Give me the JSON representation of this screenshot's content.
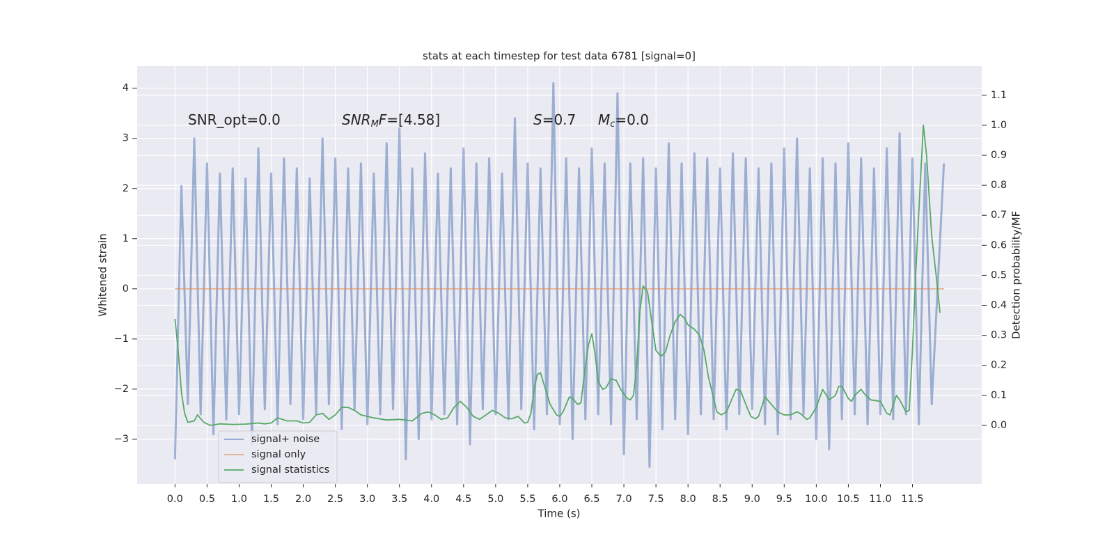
{
  "chart_data": {
    "type": "line",
    "title": "stats at each timestep for test data 6781 [signal=0]",
    "xlabel": "Time (s)",
    "ylabel": "Whitened strain",
    "y2label": "Detection probability/MF",
    "annotations": [
      [
        "SNR_opt=0.0"
      ],
      [
        "SNR",
        "M",
        "F",
        "=[4.58]"
      ],
      [
        "S",
        "=0.7"
      ],
      [
        "M",
        "c",
        "=0.0"
      ]
    ],
    "xlim": [
      -0.59,
      12.58
    ],
    "ylim": [
      -3.89,
      4.44
    ],
    "y2lim": [
      -0.195,
      1.197
    ],
    "xticks": [
      {
        "value": 0,
        "label": "0.0"
      },
      0.5,
      {
        "value": 1,
        "label": "1.0"
      },
      1.5,
      {
        "value": 2,
        "label": "2.0"
      },
      2.5,
      {
        "value": 3,
        "label": "3.0"
      },
      3.5,
      {
        "value": 4,
        "label": "4.0"
      },
      4.5,
      {
        "value": 5,
        "label": "5.0"
      },
      5.5,
      {
        "value": 6,
        "label": "6.0"
      },
      6.5,
      {
        "value": 7,
        "label": "7.0"
      },
      7.5,
      {
        "value": 8,
        "label": "8.0"
      },
      8.5,
      {
        "value": 9,
        "label": "9.0"
      },
      9.5,
      {
        "value": 10,
        "label": "10.0"
      },
      10.5,
      {
        "value": 11,
        "label": "11.0"
      },
      11.5
    ],
    "yticks": [
      {
        "value": -3,
        "label": "−3"
      },
      {
        "value": -2,
        "label": "−2"
      },
      {
        "value": -1,
        "label": "−1"
      },
      0,
      1,
      2,
      3,
      4
    ],
    "y2ticks": [
      {
        "value": 0,
        "label": "0.0"
      },
      0.1,
      0.2,
      0.3,
      0.4,
      0.5,
      0.6,
      0.7,
      0.8,
      0.9,
      {
        "value": 1,
        "label": "1.0"
      },
      1.1
    ],
    "grid": true,
    "legend_loc": "lower left",
    "series": [
      {
        "name": "signal+ noise",
        "color": "#4c72b0",
        "x": [
          0,
          0.1,
          0.2,
          0.3,
          0.4,
          0.5,
          0.6,
          0.7,
          0.8,
          0.9,
          1,
          1.1,
          1.2,
          1.3,
          1.4,
          1.5,
          1.6,
          1.7,
          1.8,
          1.9,
          2,
          2.1,
          2.2,
          2.3,
          2.4,
          2.5,
          2.6,
          2.7,
          2.8,
          2.9,
          3,
          3.1,
          3.2,
          3.3,
          3.4,
          3.5,
          3.6,
          3.7,
          3.8,
          3.9,
          4,
          4.1,
          4.2,
          4.3,
          4.4,
          4.5,
          4.6,
          4.7,
          4.8,
          4.9,
          5,
          5.1,
          5.2,
          5.3,
          5.4,
          5.5,
          5.6,
          5.7,
          5.8,
          5.9,
          6,
          6.1,
          6.2,
          6.3,
          6.4,
          6.5,
          6.6,
          6.7,
          6.8,
          6.9,
          7,
          7.1,
          7.2,
          7.3,
          7.4,
          7.5,
          7.6,
          7.7,
          7.8,
          7.9,
          8,
          8.1,
          8.2,
          8.3,
          8.4,
          8.5,
          8.6,
          8.7,
          8.8,
          8.9,
          9,
          9.1,
          9.2,
          9.3,
          9.4,
          9.5,
          9.6,
          9.7,
          9.8,
          9.9,
          10,
          10.1,
          10.2,
          10.3,
          10.4,
          10.5,
          10.6,
          10.7,
          10.8,
          10.9,
          11,
          11.1,
          11.2,
          11.3,
          11.4,
          11.5,
          11.6,
          11.7,
          11.8,
          11.99
        ],
        "values": [
          -3.4,
          2.05,
          -2.3,
          3.0,
          -2.5,
          2.5,
          -2.9,
          2.3,
          -2.6,
          2.4,
          -2.5,
          2.2,
          -3.1,
          2.8,
          -2.4,
          2.3,
          -2.7,
          2.6,
          -2.3,
          2.4,
          -2.6,
          2.2,
          -2.5,
          3.0,
          -2.3,
          2.6,
          -2.8,
          2.4,
          -2.4,
          2.5,
          -2.7,
          2.3,
          -2.5,
          2.9,
          -2.4,
          3.2,
          -3.4,
          2.4,
          -3.0,
          2.7,
          -2.6,
          2.3,
          -2.5,
          2.4,
          -2.7,
          2.8,
          -3.1,
          2.5,
          -2.4,
          2.6,
          -2.5,
          2.3,
          -2.6,
          3.4,
          -2.4,
          2.5,
          -2.8,
          2.4,
          -2.5,
          4.1,
          -2.7,
          2.6,
          -3.0,
          2.4,
          -2.6,
          2.8,
          -2.5,
          2.5,
          -2.7,
          3.9,
          -3.3,
          2.5,
          -2.6,
          2.6,
          -3.55,
          2.4,
          -2.8,
          2.9,
          -2.6,
          2.5,
          -2.9,
          2.7,
          -2.5,
          2.6,
          -2.6,
          2.4,
          -2.8,
          2.7,
          -2.5,
          2.6,
          -2.4,
          2.4,
          -2.7,
          2.5,
          -2.9,
          2.8,
          -2.6,
          3.0,
          -2.5,
          2.4,
          -3.0,
          2.6,
          -3.2,
          2.5,
          -2.6,
          2.9,
          -2.5,
          2.6,
          -2.7,
          2.4,
          -2.5,
          2.8,
          -2.6,
          3.1,
          -2.5,
          2.6,
          -2.7,
          2.5,
          -2.3,
          2.5
        ]
      },
      {
        "name": "signal only",
        "color": "#dd8452",
        "x": [
          0,
          11.99
        ],
        "values": [
          0,
          0
        ]
      },
      {
        "name": "signal statistics",
        "color": "#55a868",
        "axis": "y2",
        "x": [
          0,
          0.05,
          0.1,
          0.15,
          0.2,
          0.3,
          0.35,
          0.45,
          0.55,
          0.7,
          0.9,
          1.1,
          1.3,
          1.4,
          1.5,
          1.6,
          1.75,
          1.9,
          2,
          2.1,
          2.2,
          2.3,
          2.4,
          2.5,
          2.6,
          2.7,
          2.8,
          2.9,
          3.1,
          3.3,
          3.5,
          3.7,
          3.85,
          3.95,
          4.05,
          4.15,
          4.25,
          4.35,
          4.45,
          4.55,
          4.65,
          4.75,
          4.85,
          4.95,
          5.05,
          5.15,
          5.25,
          5.35,
          5.45,
          5.5,
          5.55,
          5.6,
          5.65,
          5.7,
          5.75,
          5.85,
          5.95,
          6,
          6.05,
          6.15,
          6.2,
          6.28,
          6.33,
          6.4,
          6.45,
          6.5,
          6.55,
          6.6,
          6.67,
          6.72,
          6.8,
          6.88,
          6.95,
          7.05,
          7.1,
          7.15,
          7.2,
          7.25,
          7.3,
          7.37,
          7.43,
          7.5,
          7.58,
          7.65,
          7.72,
          7.8,
          7.88,
          7.95,
          8,
          8.1,
          8.18,
          8.25,
          8.32,
          8.4,
          8.45,
          8.52,
          8.6,
          8.75,
          8.82,
          8.92,
          8.98,
          9.05,
          9.1,
          9.2,
          9.3,
          9.4,
          9.5,
          9.6,
          9.7,
          9.75,
          9.85,
          9.9,
          10,
          10.05,
          10.1,
          10.2,
          10.3,
          10.35,
          10.4,
          10.5,
          10.55,
          10.6,
          10.7,
          10.75,
          10.85,
          11,
          11.1,
          11.15,
          11.25,
          11.3,
          11.4,
          11.45,
          11.5,
          11.55,
          11.62,
          11.67,
          11.72,
          11.8,
          11.88,
          11.93
        ],
        "values": [
          0.355,
          0.25,
          0.11,
          0.04,
          0.01,
          0.015,
          0.035,
          0.01,
          0,
          0.005,
          0.003,
          0.004,
          0.008,
          0.005,
          0.008,
          0.025,
          0.015,
          0.015,
          0.008,
          0.01,
          0.035,
          0.04,
          0.02,
          0.035,
          0.06,
          0.06,
          0.05,
          0.035,
          0.025,
          0.018,
          0.02,
          0.015,
          0.04,
          0.045,
          0.035,
          0.02,
          0.025,
          0.06,
          0.08,
          0.06,
          0.03,
          0.02,
          0.035,
          0.05,
          0.04,
          0.025,
          0.022,
          0.03,
          0.008,
          0.01,
          0.04,
          0.12,
          0.17,
          0.175,
          0.14,
          0.07,
          0.035,
          0.03,
          0.045,
          0.095,
          0.09,
          0.07,
          0.075,
          0.2,
          0.27,
          0.305,
          0.24,
          0.145,
          0.12,
          0.125,
          0.155,
          0.15,
          0.12,
          0.09,
          0.085,
          0.1,
          0.2,
          0.38,
          0.465,
          0.445,
          0.35,
          0.25,
          0.23,
          0.245,
          0.3,
          0.345,
          0.37,
          0.355,
          0.335,
          0.32,
          0.3,
          0.25,
          0.16,
          0.09,
          0.045,
          0.035,
          0.045,
          0.12,
          0.115,
          0.06,
          0.03,
          0.022,
          0.03,
          0.095,
          0.07,
          0.045,
          0.035,
          0.035,
          0.045,
          0.04,
          0.02,
          0.025,
          0.06,
          0.09,
          0.12,
          0.085,
          0.1,
          0.13,
          0.13,
          0.09,
          0.08,
          0.1,
          0.12,
          0.105,
          0.085,
          0.08,
          0.04,
          0.035,
          0.1,
          0.085,
          0.045,
          0.05,
          0.25,
          0.5,
          0.8,
          1.0,
          0.9,
          0.63,
          0.48,
          0.375
        ]
      }
    ]
  }
}
